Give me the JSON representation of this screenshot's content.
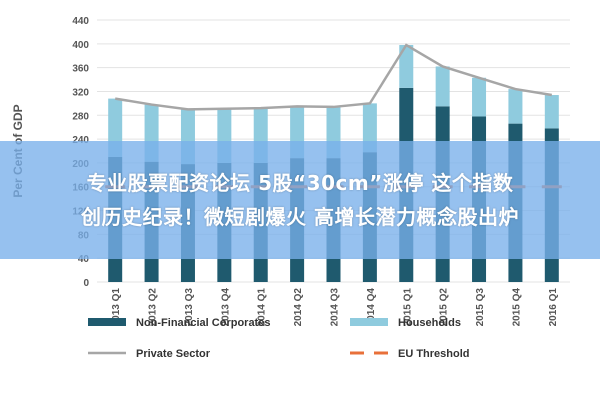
{
  "chart_data": {
    "type": "bar",
    "ylabel": "Per Cent of GDP",
    "ylim": [
      0,
      440
    ],
    "yticks": [
      0,
      40,
      80,
      120,
      160,
      200,
      240,
      280,
      320,
      360,
      400,
      440
    ],
    "categories": [
      "2013 Q1",
      "2013 Q2",
      "2013 Q3",
      "2013 Q4",
      "2014 Q1",
      "2014 Q2",
      "2014 Q3",
      "2014 Q4",
      "2015 Q1",
      "2015 Q2",
      "2015 Q3",
      "2015 Q4",
      "2016 Q1"
    ],
    "series": [
      {
        "name": "Non-Financial Corporates",
        "kind": "bar",
        "color": "#1f5a6e",
        "values": [
          210,
          202,
          198,
          200,
          200,
          208,
          208,
          218,
          326,
          295,
          278,
          266,
          258
        ]
      },
      {
        "name": "Households",
        "kind": "bar",
        "color": "#8fcbde",
        "values": [
          98,
          96,
          92,
          91,
          92,
          87,
          86,
          82,
          72,
          67,
          65,
          58,
          56
        ]
      },
      {
        "name": "Private Sector",
        "kind": "line",
        "color": "#a6a6a6",
        "values": [
          308,
          298,
          290,
          291,
          292,
          295,
          294,
          300,
          398,
          362,
          343,
          324,
          314
        ]
      },
      {
        "name": "EU Threshold",
        "kind": "dash",
        "color": "#e8703a",
        "values": [
          160,
          160,
          160,
          160,
          160,
          160,
          160,
          160,
          160,
          160,
          160,
          160,
          160
        ]
      }
    ]
  },
  "overlay": {
    "line1": "专业股票配资论坛 5股“30cm”涨停 这个指数",
    "line2": "创历史纪录！微短剧爆火 高增长潜力概念股出炉"
  }
}
